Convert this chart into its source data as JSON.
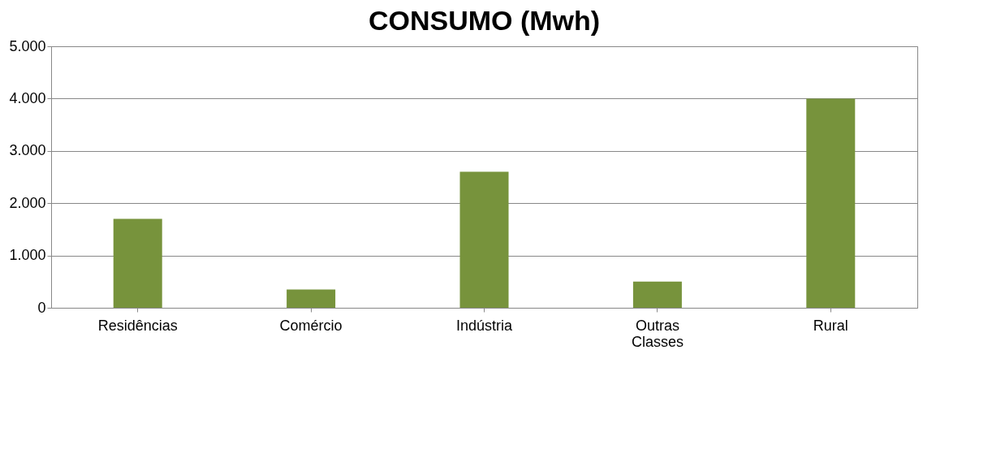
{
  "chart_data": {
    "type": "bar",
    "title": "CONSUMO (Mwh)",
    "categories": [
      "Residências",
      "Comércio",
      "Indústria",
      "Outras Classes",
      "Rural"
    ],
    "values": [
      1700,
      350,
      2600,
      500,
      4000
    ],
    "color": "#77933c",
    "ylim": [
      0,
      5000
    ],
    "yticks": [
      0,
      {
        "value": 1000,
        "label": "1.000"
      },
      {
        "value": 2000,
        "label": "2.000"
      },
      {
        "value": 3000,
        "label": "3.000"
      },
      {
        "value": 4000,
        "label": "4.000"
      },
      {
        "value": 5000,
        "label": "5.000"
      }
    ],
    "grid": true
  }
}
